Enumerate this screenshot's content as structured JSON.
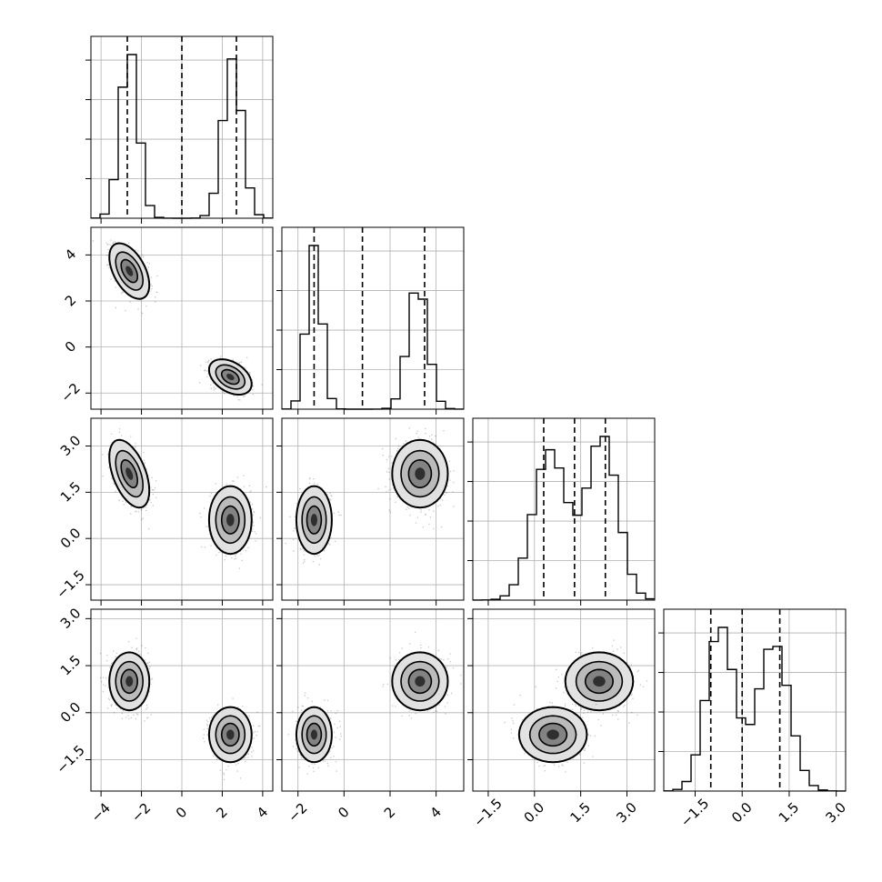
{
  "chart_data": {
    "type": "corner",
    "grid": true,
    "n_params": 4,
    "params": [
      {
        "index": 0,
        "range": [
          -4.5,
          4.5
        ],
        "ticks": [
          -4,
          -2,
          0,
          2,
          4
        ],
        "tick_labels": [
          "−4",
          "−2",
          "0",
          "2",
          "4"
        ],
        "quantiles": [
          -2.7,
          0.0,
          2.7
        ],
        "modes": [
          {
            "mean": -2.6,
            "sd": 0.45,
            "weight": 0.5
          },
          {
            "mean": 2.5,
            "sd": 0.48,
            "weight": 0.5
          }
        ]
      },
      {
        "index": 1,
        "range": [
          -2.7,
          5.2
        ],
        "ticks": [
          -2,
          0,
          2,
          4
        ],
        "tick_labels": [
          "−2",
          "0",
          "2",
          "4"
        ],
        "quantiles": [
          -1.3,
          0.8,
          3.5
        ],
        "modes": [
          {
            "mean": -1.3,
            "sd": 0.33,
            "weight": 0.5
          },
          {
            "mean": 3.2,
            "sd": 0.43,
            "weight": 0.5
          }
        ]
      },
      {
        "index": 2,
        "range": [
          -2.0,
          3.9
        ],
        "ticks": [
          -1.5,
          0.0,
          1.5,
          3.0
        ],
        "tick_labels": [
          "−1.5",
          "0.0",
          "1.5",
          "3.0"
        ],
        "quantiles": [
          0.3,
          1.3,
          2.3
        ],
        "modes": [
          {
            "mean": 0.5,
            "sd": 0.55,
            "weight": 0.5
          },
          {
            "mean": 2.2,
            "sd": 0.5,
            "weight": 0.5
          }
        ]
      },
      {
        "index": 3,
        "range": [
          -2.5,
          3.3
        ],
        "ticks": [
          -1.5,
          0.0,
          1.5,
          3.0
        ],
        "tick_labels": [
          "−1.5",
          "0.0",
          "1.5",
          "3.0"
        ],
        "quantiles": [
          -1.0,
          0.0,
          1.2
        ],
        "modes": [
          {
            "mean": -0.7,
            "sd": 0.45,
            "weight": 0.5
          },
          {
            "mean": 1.0,
            "sd": 0.5,
            "weight": 0.5
          }
        ]
      }
    ],
    "clusters": [
      {
        "center": [
          -2.6,
          3.3,
          2.1,
          1.0
        ],
        "sd": [
          0.45,
          0.55,
          0.5,
          0.42
        ],
        "corr": {
          "0-1": -0.5,
          "0-2": -0.5
        }
      },
      {
        "center": [
          2.4,
          -1.3,
          0.6,
          -0.7
        ],
        "sd": [
          0.48,
          0.35,
          0.5,
          0.4
        ],
        "corr": {
          "0-1": -0.4
        }
      }
    ]
  }
}
